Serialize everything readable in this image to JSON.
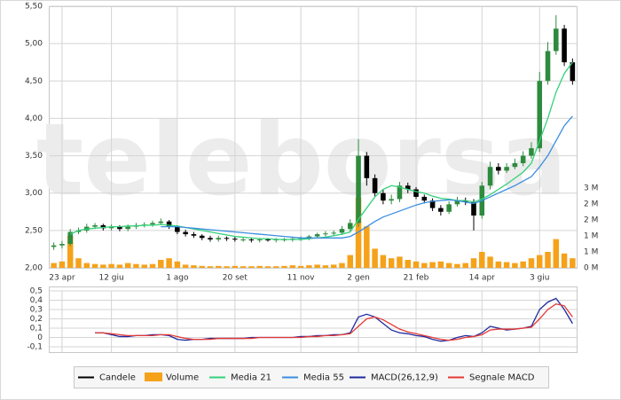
{
  "watermark": "teleborsa",
  "chart_data": [
    {
      "type": "candlestick",
      "categories": [
        null,
        "23 apr",
        null,
        null,
        null,
        null,
        null,
        "12 giu",
        null,
        null,
        null,
        null,
        null,
        null,
        null,
        "1 ago",
        null,
        null,
        null,
        null,
        null,
        null,
        "20 set",
        null,
        null,
        null,
        null,
        null,
        null,
        null,
        "11 nov",
        null,
        null,
        null,
        null,
        null,
        null,
        "2 gen",
        null,
        null,
        null,
        null,
        null,
        null,
        "21 feb",
        null,
        null,
        null,
        null,
        null,
        null,
        null,
        "14 apr",
        null,
        null,
        null,
        null,
        null,
        null,
        "3 giu",
        null,
        null,
        null,
        null
      ],
      "candles": {
        "name": "Candele",
        "color": "#000000",
        "up_color": "#2e8b3e",
        "open": [
          2.28,
          2.3,
          2.32,
          2.48,
          2.5,
          2.55,
          2.57,
          2.53,
          2.55,
          2.52,
          2.55,
          2.57,
          2.58,
          2.6,
          2.62,
          2.55,
          2.48,
          2.45,
          2.43,
          2.4,
          2.38,
          2.4,
          2.39,
          2.38,
          2.38,
          2.37,
          2.38,
          2.37,
          2.38,
          2.38,
          2.39,
          2.4,
          2.42,
          2.45,
          2.46,
          2.47,
          2.52,
          2.6,
          3.5,
          3.2,
          3.0,
          2.9,
          2.92,
          3.1,
          3.05,
          2.95,
          2.9,
          2.8,
          2.75,
          2.85,
          2.9,
          2.88,
          2.7,
          3.1,
          3.35,
          3.3,
          3.35,
          3.4,
          3.5,
          3.6,
          4.5,
          4.9,
          5.2,
          4.75
        ],
        "high": [
          2.34,
          2.36,
          2.52,
          2.54,
          2.59,
          2.6,
          2.59,
          2.58,
          2.57,
          2.58,
          2.6,
          2.61,
          2.63,
          2.66,
          2.64,
          2.57,
          2.51,
          2.48,
          2.45,
          2.43,
          2.43,
          2.42,
          2.42,
          2.41,
          2.4,
          2.4,
          2.4,
          2.4,
          2.4,
          2.41,
          2.42,
          2.44,
          2.47,
          2.49,
          2.5,
          2.56,
          2.65,
          3.72,
          3.55,
          3.25,
          3.05,
          2.98,
          3.15,
          3.14,
          3.08,
          2.98,
          2.93,
          2.84,
          2.89,
          2.95,
          2.94,
          2.92,
          3.15,
          3.42,
          3.4,
          3.4,
          3.46,
          3.56,
          3.68,
          4.62,
          5.02,
          5.38,
          5.25,
          4.8
        ],
        "low": [
          2.24,
          2.26,
          2.29,
          2.45,
          2.47,
          2.52,
          2.5,
          2.5,
          2.49,
          2.49,
          2.52,
          2.54,
          2.55,
          2.57,
          2.52,
          2.45,
          2.42,
          2.4,
          2.37,
          2.35,
          2.35,
          2.36,
          2.35,
          2.35,
          2.34,
          2.34,
          2.35,
          2.34,
          2.35,
          2.35,
          2.36,
          2.37,
          2.39,
          2.42,
          2.43,
          2.44,
          2.49,
          2.55,
          3.1,
          2.95,
          2.85,
          2.85,
          2.88,
          3.0,
          2.92,
          2.86,
          2.76,
          2.7,
          2.72,
          2.82,
          2.84,
          2.5,
          2.66,
          3.05,
          3.25,
          3.27,
          3.32,
          3.36,
          3.46,
          3.55,
          4.45,
          4.85,
          4.7,
          4.45
        ],
        "close": [
          2.3,
          2.32,
          2.48,
          2.5,
          2.55,
          2.57,
          2.53,
          2.55,
          2.52,
          2.55,
          2.57,
          2.58,
          2.6,
          2.62,
          2.55,
          2.48,
          2.45,
          2.43,
          2.4,
          2.38,
          2.4,
          2.39,
          2.38,
          2.38,
          2.37,
          2.38,
          2.37,
          2.38,
          2.38,
          2.39,
          2.4,
          2.42,
          2.45,
          2.46,
          2.47,
          2.52,
          2.6,
          3.5,
          3.2,
          3.0,
          2.9,
          2.92,
          3.1,
          3.05,
          2.95,
          2.9,
          2.8,
          2.75,
          2.85,
          2.9,
          2.88,
          2.7,
          3.1,
          3.35,
          3.3,
          3.35,
          3.4,
          3.5,
          3.6,
          4.5,
          4.9,
          5.2,
          4.75,
          4.5
        ]
      },
      "volume": {
        "name": "Volume",
        "color": "#f5a21a",
        "axis": "y2",
        "values": [
          0.15,
          0.2,
          1.0,
          0.3,
          0.15,
          0.12,
          0.1,
          0.12,
          0.1,
          0.15,
          0.12,
          0.1,
          0.12,
          0.25,
          0.3,
          0.2,
          0.1,
          0.08,
          0.06,
          0.05,
          0.06,
          0.05,
          0.06,
          0.05,
          0.05,
          0.06,
          0.05,
          0.05,
          0.06,
          0.08,
          0.06,
          0.08,
          0.1,
          0.08,
          0.1,
          0.15,
          0.4,
          2.2,
          1.3,
          0.6,
          0.4,
          0.3,
          0.35,
          0.25,
          0.2,
          0.15,
          0.18,
          0.2,
          0.15,
          0.12,
          0.15,
          0.3,
          0.5,
          0.35,
          0.2,
          0.18,
          0.15,
          0.2,
          0.3,
          0.4,
          0.5,
          0.9,
          0.45,
          0.3
        ]
      },
      "series": [
        {
          "name": "Media 21",
          "color": "#33d17a",
          "values": [
            null,
            null,
            2.45,
            2.5,
            2.52,
            2.53,
            2.54,
            2.55,
            2.55,
            2.56,
            2.56,
            2.57,
            2.57,
            2.58,
            2.57,
            2.56,
            2.54,
            2.52,
            2.5,
            2.48,
            2.46,
            2.44,
            2.42,
            2.41,
            2.4,
            2.39,
            2.39,
            2.38,
            2.38,
            2.38,
            2.38,
            2.39,
            2.4,
            2.41,
            2.43,
            2.45,
            2.48,
            2.65,
            2.8,
            2.95,
            3.05,
            3.1,
            3.08,
            3.05,
            3.02,
            3.0,
            2.96,
            2.93,
            2.92,
            2.9,
            2.9,
            2.88,
            2.92,
            2.98,
            3.05,
            3.12,
            3.2,
            3.28,
            3.4,
            3.7,
            4.0,
            4.35,
            4.6,
            4.75
          ]
        },
        {
          "name": "Media 55",
          "color": "#3a8ee0",
          "values": [
            null,
            null,
            null,
            null,
            null,
            null,
            null,
            null,
            null,
            null,
            null,
            null,
            null,
            2.55,
            2.55,
            2.55,
            2.54,
            2.53,
            2.52,
            2.51,
            2.5,
            2.49,
            2.48,
            2.47,
            2.46,
            2.45,
            2.44,
            2.43,
            2.42,
            2.41,
            2.4,
            2.4,
            2.4,
            2.4,
            2.4,
            2.4,
            2.42,
            2.48,
            2.55,
            2.62,
            2.68,
            2.72,
            2.76,
            2.8,
            2.84,
            2.87,
            2.89,
            2.9,
            2.91,
            2.9,
            2.88,
            2.86,
            2.9,
            2.95,
            3.0,
            3.05,
            3.1,
            3.16,
            3.22,
            3.35,
            3.5,
            3.7,
            3.9,
            4.03
          ]
        }
      ],
      "ylim": [
        2.0,
        5.5
      ],
      "yticks": [
        {
          "value": 2.0,
          "label": "2,00"
        },
        {
          "value": 2.5,
          "label": "2,50"
        },
        {
          "value": 3.0,
          "label": "3,00"
        },
        {
          "value": 3.5,
          "label": "3,50"
        },
        {
          "value": 4.0,
          "label": "4,00"
        },
        {
          "value": 4.5,
          "label": "4,50"
        },
        {
          "value": 5.0,
          "label": "5,00"
        },
        {
          "value": 5.5,
          "label": "5,50"
        }
      ],
      "y2lim": [
        0,
        8.19
      ],
      "y2ticks": [
        {
          "value": 0,
          "label": "0 M"
        },
        {
          "value": 0.5,
          "label": "1 M"
        },
        {
          "value": 1,
          "label": "1 M"
        },
        {
          "value": 1.5,
          "label": "2 M"
        },
        {
          "value": 2,
          "label": "2 M"
        },
        {
          "value": 2.5,
          "label": "3 M"
        }
      ],
      "grid": true
    },
    {
      "type": "line",
      "series": [
        {
          "name": "MACD(26,12,9)",
          "color": "#1f2a9e",
          "values": [
            null,
            null,
            null,
            null,
            null,
            0.05,
            0.05,
            0.03,
            0.01,
            0.01,
            0.02,
            0.02,
            0.03,
            0.03,
            0.02,
            -0.02,
            -0.03,
            -0.02,
            -0.02,
            -0.01,
            -0.01,
            -0.01,
            -0.01,
            -0.01,
            0.0,
            0.0,
            0.0,
            0.0,
            0.0,
            0.0,
            0.01,
            0.01,
            0.02,
            0.02,
            0.03,
            0.03,
            0.05,
            0.22,
            0.25,
            0.22,
            0.15,
            0.08,
            0.05,
            0.04,
            0.02,
            0.01,
            -0.02,
            -0.04,
            -0.03,
            0.0,
            0.02,
            0.01,
            0.05,
            0.12,
            0.1,
            0.08,
            0.09,
            0.1,
            0.12,
            0.3,
            0.38,
            0.42,
            0.3,
            0.15
          ]
        },
        {
          "name": "Segnale MACD",
          "color": "#e53935",
          "values": [
            null,
            null,
            null,
            null,
            null,
            0.05,
            0.05,
            0.04,
            0.03,
            0.02,
            0.02,
            0.02,
            0.02,
            0.03,
            0.03,
            0.01,
            -0.01,
            -0.02,
            -0.02,
            -0.02,
            -0.01,
            -0.01,
            -0.01,
            -0.01,
            -0.01,
            0.0,
            0.0,
            0.0,
            0.0,
            0.0,
            0.0,
            0.01,
            0.01,
            0.02,
            0.02,
            0.03,
            0.04,
            0.12,
            0.2,
            0.22,
            0.19,
            0.14,
            0.09,
            0.06,
            0.04,
            0.02,
            0.0,
            -0.02,
            -0.03,
            -0.02,
            0.0,
            0.01,
            0.03,
            0.08,
            0.09,
            0.09,
            0.09,
            0.1,
            0.11,
            0.2,
            0.3,
            0.36,
            0.34,
            0.22
          ]
        }
      ],
      "ylim": [
        -0.1,
        0.5
      ],
      "yticks": [
        {
          "value": -0.1,
          "label": "-0,1"
        },
        0,
        {
          "value": 0.1,
          "label": "0,1"
        },
        {
          "value": 0.2,
          "label": "0,2"
        },
        {
          "value": 0.3,
          "label": "0,3"
        },
        {
          "value": 0.4,
          "label": "0,4"
        },
        {
          "value": 0.5,
          "label": "0,5"
        }
      ],
      "grid": true
    }
  ]
}
